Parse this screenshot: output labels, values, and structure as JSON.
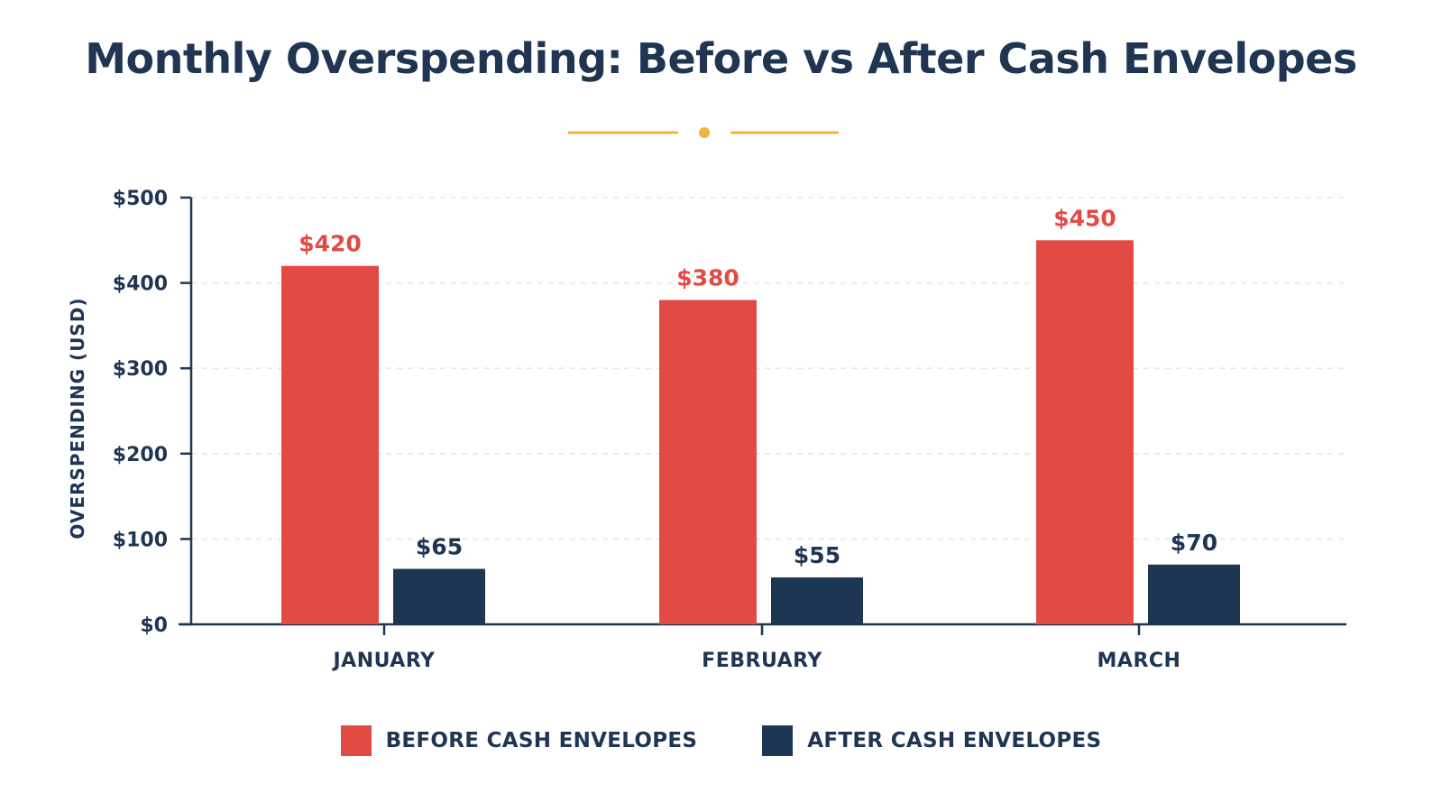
{
  "chart_data": {
    "type": "bar",
    "title": "Monthly Overspending: Before vs After Cash Envelopes",
    "xlabel": "",
    "ylabel": "OVERSPENDING (USD)",
    "categories": [
      "JANUARY",
      "FEBRUARY",
      "MARCH"
    ],
    "series": [
      {
        "name": "BEFORE CASH ENVELOPES",
        "values": [
          420,
          380,
          450
        ],
        "value_labels": [
          "$420",
          "$380",
          "$450"
        ],
        "color": "#e24a44"
      },
      {
        "name": "AFTER CASH ENVELOPES",
        "values": [
          65,
          55,
          70
        ],
        "value_labels": [
          "$65",
          "$55",
          "$70"
        ],
        "color": "#1d3653"
      }
    ],
    "ylim": [
      0,
      500
    ],
    "yticks": [
      0,
      100,
      200,
      300,
      400,
      500
    ],
    "ytick_labels": [
      "$0",
      "$100",
      "$200",
      "$300",
      "$400",
      "$500"
    ],
    "grid": true,
    "legend_position": "bottom-center",
    "accent_color": "#efb53c"
  }
}
